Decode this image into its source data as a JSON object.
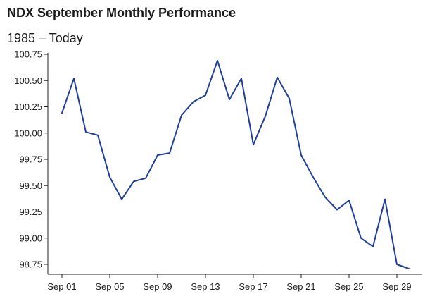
{
  "chart_data": {
    "type": "line",
    "title": "NDX September Monthly Performance",
    "subtitle": "1985 – Today",
    "xlabel": "",
    "ylabel": "",
    "x": [
      "Sep 01",
      "Sep 02",
      "Sep 03",
      "Sep 04",
      "Sep 05",
      "Sep 06",
      "Sep 07",
      "Sep 08",
      "Sep 09",
      "Sep 10",
      "Sep 11",
      "Sep 12",
      "Sep 13",
      "Sep 14",
      "Sep 15",
      "Sep 16",
      "Sep 17",
      "Sep 18",
      "Sep 19",
      "Sep 20",
      "Sep 21",
      "Sep 22",
      "Sep 23",
      "Sep 24",
      "Sep 25",
      "Sep 26",
      "Sep 27",
      "Sep 28",
      "Sep 29",
      "Sep 30"
    ],
    "x_tick_labels": [
      "Sep 01",
      "Sep 05",
      "Sep 09",
      "Sep 13",
      "Sep 17",
      "Sep 21",
      "Sep 25",
      "Sep 29"
    ],
    "series": [
      {
        "values": [
          100.19,
          100.52,
          100.01,
          99.98,
          99.58,
          99.37,
          99.54,
          99.57,
          99.79,
          99.81,
          100.17,
          100.3,
          100.36,
          100.69,
          100.32,
          100.52,
          99.89,
          100.16,
          100.53,
          100.33,
          99.79,
          99.58,
          99.39,
          99.27,
          99.36,
          99.0,
          98.92,
          99.37,
          98.75,
          98.71
        ]
      }
    ],
    "y_ticks": [
      "100.75",
      "100.50",
      "100.25",
      "100.00",
      "99.75",
      "99.50",
      "99.25",
      "99.00",
      "98.75"
    ],
    "ylim": [
      98.75,
      100.75
    ],
    "grid": false,
    "legend": "none",
    "line_color": "#1f3f99",
    "axis_color": "#222222"
  }
}
